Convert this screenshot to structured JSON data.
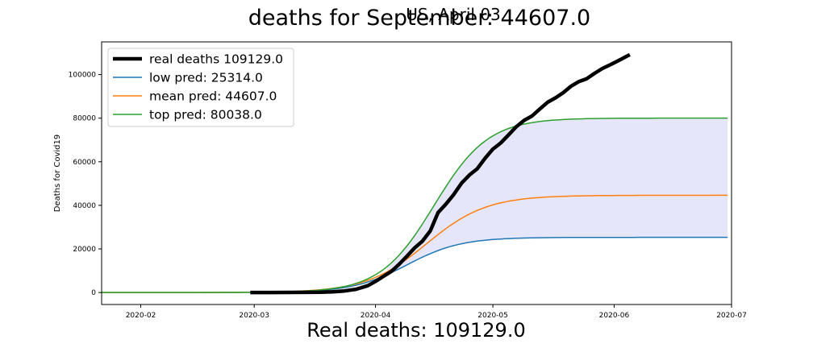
{
  "figure": {
    "suptitle": "US, April 03",
    "title": "deaths for September: 44607.0",
    "bottom_text": "Real deaths: 109129.0"
  },
  "chart_data": {
    "type": "line",
    "title": "deaths for September: 44607.0",
    "xlabel": "",
    "ylabel": "Deaths for Covid19",
    "xlim": [
      "2020-01-22",
      "2020-07-01"
    ],
    "ylim": [
      -5500,
      115000
    ],
    "x_ticks": [
      "2020-02-01",
      "2020-03-01",
      "2020-04-01",
      "2020-05-01",
      "2020-06-01",
      "2020-07-01"
    ],
    "x_tick_labels": [
      "2020-02",
      "2020-03",
      "2020-04",
      "2020-05",
      "2020-06",
      "2020-07"
    ],
    "y_ticks": [
      0,
      20000,
      40000,
      60000,
      80000,
      100000
    ],
    "y_tick_labels": [
      "0",
      "20000",
      "40000",
      "60000",
      "80000",
      "100000"
    ],
    "grid": false,
    "legend_position": "top-left",
    "series": [
      {
        "name": "real deaths 109129.0",
        "color": "#000000",
        "kind": "thick-line",
        "points": [
          [
            "2020-02-29",
            0
          ],
          [
            "2020-03-05",
            10
          ],
          [
            "2020-03-10",
            28
          ],
          [
            "2020-03-15",
            65
          ],
          [
            "2020-03-18",
            130
          ],
          [
            "2020-03-21",
            300
          ],
          [
            "2020-03-24",
            700
          ],
          [
            "2020-03-27",
            1500
          ],
          [
            "2020-03-30",
            3100
          ],
          [
            "2020-04-01",
            5100
          ],
          [
            "2020-04-03",
            7400
          ],
          [
            "2020-04-05",
            9600
          ],
          [
            "2020-04-07",
            12900
          ],
          [
            "2020-04-09",
            16600
          ],
          [
            "2020-04-11",
            20500
          ],
          [
            "2020-04-13",
            23600
          ],
          [
            "2020-04-15",
            28300
          ],
          [
            "2020-04-17",
            36700
          ],
          [
            "2020-04-19",
            40600
          ],
          [
            "2020-04-21",
            45000
          ],
          [
            "2020-04-23",
            50200
          ],
          [
            "2020-04-25",
            53900
          ],
          [
            "2020-04-27",
            56800
          ],
          [
            "2020-04-29",
            61600
          ],
          [
            "2020-05-01",
            65800
          ],
          [
            "2020-05-03",
            68600
          ],
          [
            "2020-05-05",
            72300
          ],
          [
            "2020-05-07",
            76100
          ],
          [
            "2020-05-09",
            79000
          ],
          [
            "2020-05-11",
            81000
          ],
          [
            "2020-05-13",
            84200
          ],
          [
            "2020-05-15",
            87300
          ],
          [
            "2020-05-17",
            89300
          ],
          [
            "2020-05-19",
            91700
          ],
          [
            "2020-05-21",
            94700
          ],
          [
            "2020-05-23",
            96800
          ],
          [
            "2020-05-25",
            98100
          ],
          [
            "2020-05-27",
            100600
          ],
          [
            "2020-05-29",
            102800
          ],
          [
            "2020-05-31",
            104500
          ],
          [
            "2020-06-02",
            106300
          ],
          [
            "2020-06-04",
            108200
          ],
          [
            "2020-06-05",
            109129
          ]
        ]
      },
      {
        "name": "low pred: 25314.0",
        "color": "#1f77b4",
        "kind": "line",
        "model": {
          "final": 25314,
          "start": "2020-01-22",
          "end": "2020-06-30",
          "midpoint": "2020-04-09",
          "rate": 0.145
        }
      },
      {
        "name": "mean pred: 44607.0",
        "color": "#ff7f0e",
        "kind": "line",
        "model": {
          "final": 44607,
          "start": "2020-01-22",
          "end": "2020-06-30",
          "midpoint": "2020-04-14",
          "rate": 0.13
        }
      },
      {
        "name": "top pred: 80038.0",
        "color": "#2ca02c",
        "kind": "line",
        "model": {
          "final": 80038,
          "start": "2020-01-22",
          "end": "2020-06-30",
          "midpoint": "2020-04-16",
          "rate": 0.145
        }
      }
    ],
    "band": {
      "between": [
        "low pred: 25314.0",
        "top pred: 80038.0"
      ],
      "color": "#e6e6fa",
      "from": "2020-04-04",
      "to": "2020-06-30"
    }
  }
}
